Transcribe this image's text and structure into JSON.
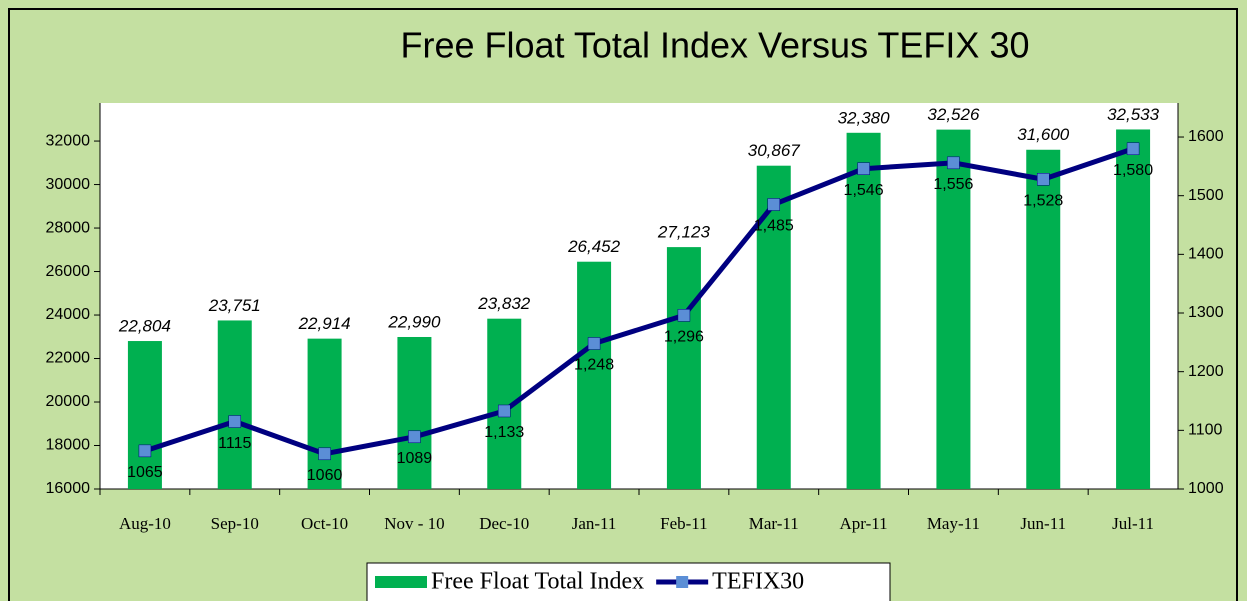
{
  "chart_data": {
    "type": "bar_line",
    "title": "Free Float Total Index Versus TEFIX 30",
    "categories": [
      "Aug-10",
      "Sep-10",
      "Oct-10",
      "Nov - 10",
      "Dec-10",
      "Jan-11",
      "Feb-11",
      "Mar-11",
      "Apr-11",
      "May-11",
      "Jun-11",
      "Jul-11"
    ],
    "series": [
      {
        "name": "Free Float Total Index",
        "color": "#00b050",
        "type": "bar",
        "values": [
          22804,
          23751,
          22914,
          22990,
          23832,
          26452,
          27123,
          30867,
          32380,
          32526,
          31600,
          32533
        ],
        "value_labels": [
          "22,804",
          "23,751",
          "22,914",
          "22,990",
          "23,832",
          "26,452",
          "27,123",
          "30,867",
          "32,380",
          "32,526",
          "31,600",
          "32,533"
        ]
      },
      {
        "name": "TEFIX30",
        "color": "#000080",
        "marker_color": "#5b8ed6",
        "type": "line",
        "axis": "y2",
        "values": [
          1065,
          1115,
          1060,
          1089,
          1133,
          1248,
          1296,
          1485,
          1546,
          1556,
          1528,
          1580
        ],
        "value_labels": [
          "1065",
          "1115",
          "1060",
          "1089",
          "1,133",
          "1,248",
          "1,296",
          "1,485",
          "1,546",
          "1,556",
          "1,528",
          "1,580"
        ]
      }
    ],
    "ylim": [
      16000,
      33750
    ],
    "yticks": [
      16000,
      18000,
      20000,
      22000,
      24000,
      26000,
      28000,
      30000,
      32000
    ],
    "y2lim": [
      1000,
      1658
    ],
    "y2ticks": [
      1000,
      1100,
      1200,
      1300,
      1400,
      1500,
      1600
    ],
    "legend": "bottom"
  }
}
